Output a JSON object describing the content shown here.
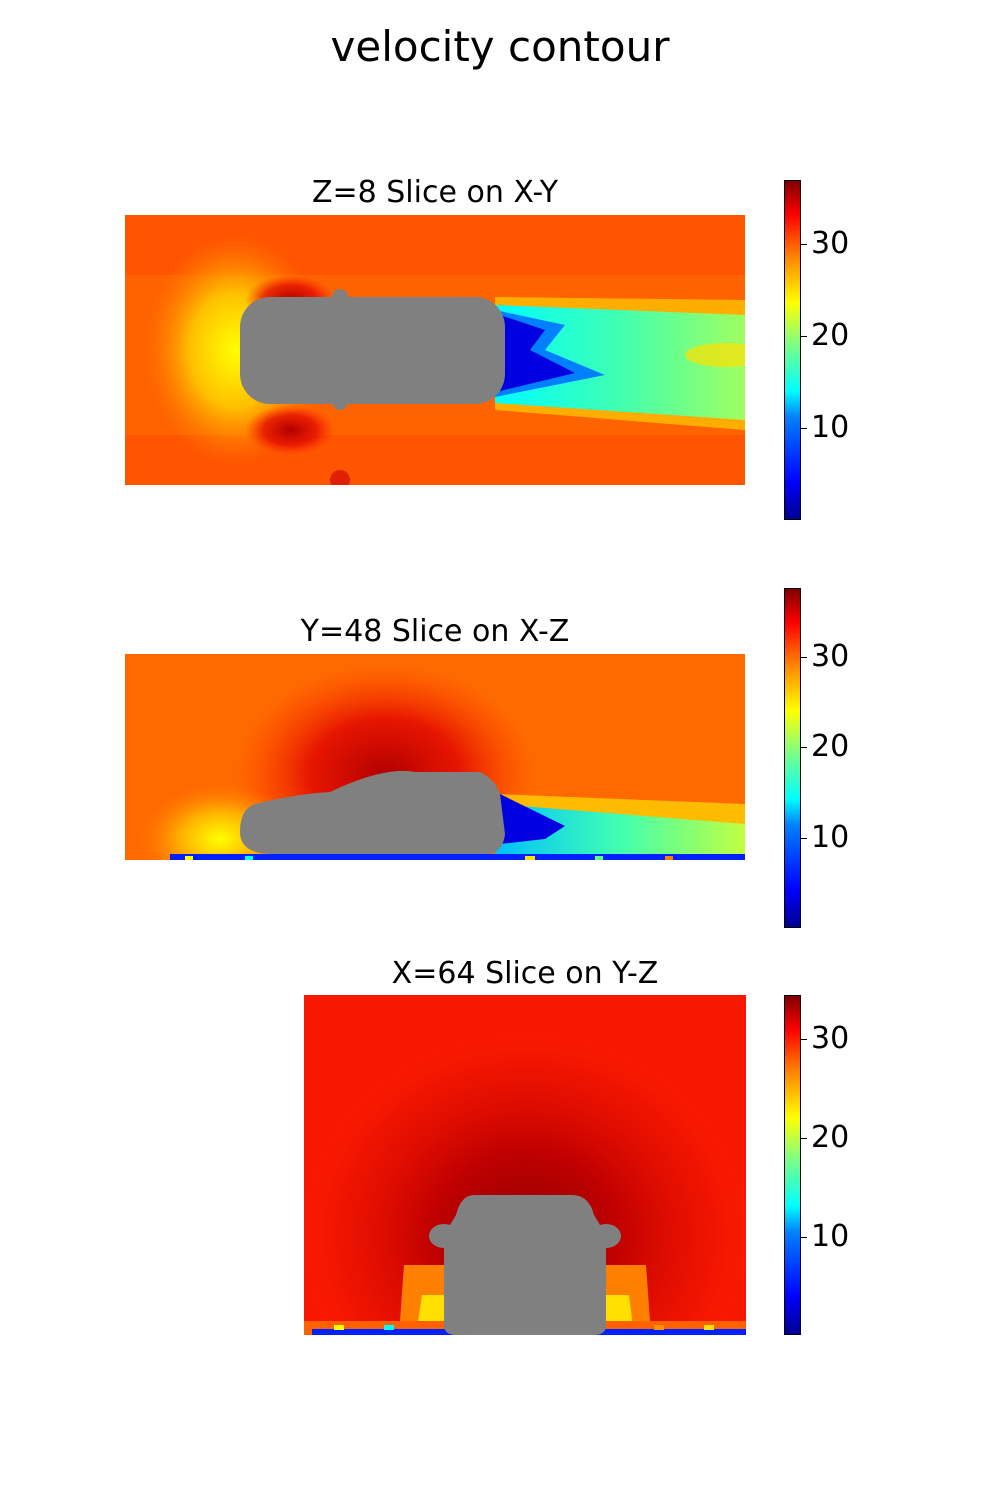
{
  "title": "velocity contour",
  "panels": [
    {
      "title": "Z=8 Slice on X-Y",
      "colorbar": {
        "min": 0,
        "max": 37,
        "ticks": [
          "10",
          "20",
          "30"
        ]
      }
    },
    {
      "title": "Y=48 Slice on X-Z",
      "colorbar": {
        "min": 0,
        "max": 37.5,
        "ticks": [
          "10",
          "20",
          "30"
        ]
      }
    },
    {
      "title": "X=64 Slice on Y-Z",
      "colorbar": {
        "min": 0,
        "max": 34.5,
        "ticks": [
          "10",
          "20",
          "30"
        ]
      }
    }
  ],
  "chart_data": [
    {
      "type": "heatmap",
      "title": "Z=8 Slice on X-Y",
      "colormap": "jet",
      "vmin": 0,
      "vmax": 37,
      "colorbar_ticks": [
        10,
        20,
        30
      ],
      "free_stream_velocity": 31,
      "wake_min_velocity": 0,
      "obstacle_color": "#808080"
    },
    {
      "type": "heatmap",
      "title": "Y=48 Slice on X-Z",
      "colormap": "jet",
      "vmin": 0,
      "vmax": 37.5,
      "colorbar_ticks": [
        10,
        20,
        30
      ],
      "free_stream_velocity": 31,
      "wake_min_velocity": 0,
      "obstacle_color": "#808080"
    },
    {
      "type": "heatmap",
      "title": "X=64 Slice on Y-Z",
      "colormap": "jet",
      "vmin": 0,
      "vmax": 34.5,
      "colorbar_ticks": [
        10,
        20,
        30
      ],
      "free_stream_velocity": 33,
      "max_velocity": 34,
      "obstacle_color": "#808080"
    }
  ]
}
